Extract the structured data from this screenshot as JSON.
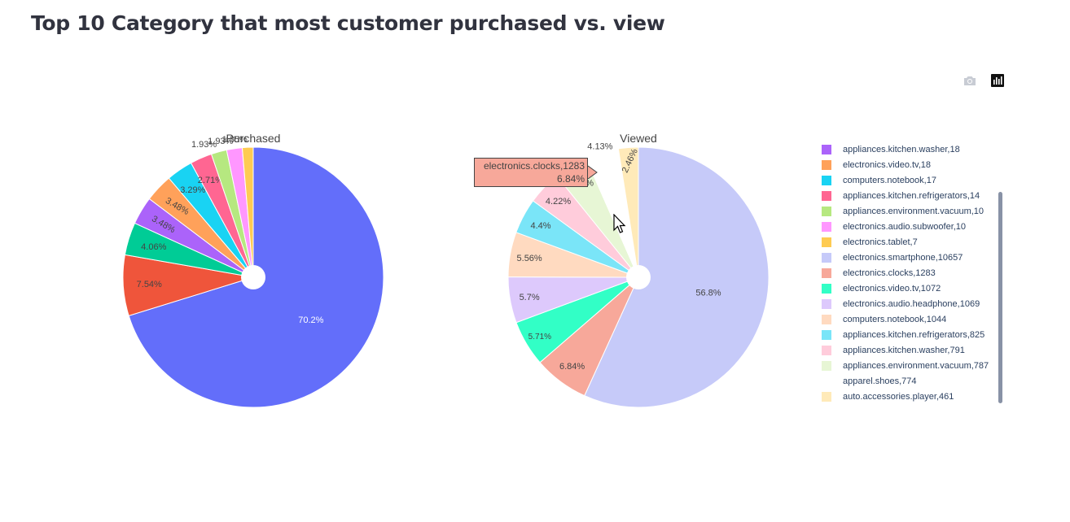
{
  "page": {
    "title": "Top 10 Category that most customer purchased vs. view"
  },
  "modebar": {
    "camera_icon": "camera-icon",
    "snapshot_icon": "bar-chart-icon"
  },
  "chart_data": [
    {
      "type": "pie",
      "title": "Purchased",
      "hole": true,
      "slices": [
        {
          "label": "electronics.smartphone",
          "value": 70.2,
          "text": "70.2%",
          "color": "#636efa"
        },
        {
          "label": "electronics.clocks",
          "value": 7.54,
          "text": "7.54%",
          "color": "#ef553b"
        },
        {
          "label": "electronics.video.tv",
          "value": 4.06,
          "text": "4.06%",
          "color": "#00cc96"
        },
        {
          "label": "appliances.kitchen.washer",
          "value": 3.48,
          "text": "3.48%",
          "color": "#ab63fa"
        },
        {
          "label": "electronics.video.tv",
          "value": 3.48,
          "text": "3.48%",
          "color": "#ffa15a"
        },
        {
          "label": "computers.notebook",
          "value": 3.29,
          "text": "3.29%",
          "color": "#19d3f3"
        },
        {
          "label": "appliances.kitchen.refrigerators",
          "value": 2.71,
          "text": "2.71%",
          "color": "#ff6692"
        },
        {
          "label": "appliances.environment.vacuum",
          "value": 1.93,
          "text": "1.93%",
          "color": "#b6e880"
        },
        {
          "label": "electronics.audio.subwoofer",
          "value": 1.93,
          "text": "1.93%",
          "color": "#ff97ff"
        },
        {
          "label": "electronics.tablet",
          "value": 1.35,
          "text": "1.35%",
          "color": "#fecb52"
        }
      ]
    },
    {
      "type": "pie",
      "title": "Viewed",
      "hole": true,
      "slices": [
        {
          "label": "electronics.smartphone",
          "value": 56.8,
          "text": "56.8%",
          "color": "#c6caf9"
        },
        {
          "label": "electronics.clocks",
          "value": 6.84,
          "text": "6.84%",
          "color": "#f7a89a"
        },
        {
          "label": "electronics.video.tv",
          "value": 5.71,
          "text": "5.71%",
          "color": "#32ffc6"
        },
        {
          "label": "electronics.audio.headphone",
          "value": 5.7,
          "text": "5.7%",
          "color": "#ddc9fc"
        },
        {
          "label": "computers.notebook",
          "value": 5.56,
          "text": "5.56%",
          "color": "#ffdac0"
        },
        {
          "label": "appliances.kitchen.refrigerators",
          "value": 4.4,
          "text": "4.4%",
          "color": "#7ae5f8"
        },
        {
          "label": "appliances.kitchen.washer",
          "value": 4.22,
          "text": "4.22%",
          "color": "#ffccdb"
        },
        {
          "label": "appliances.environment.vacuum",
          "value": 4.19,
          "text": "4.19%",
          "color": "#e7f6d5"
        },
        {
          "label": "apparel.shoes",
          "value": 4.13,
          "text": "4.13%",
          "color": "#ffffff"
        },
        {
          "label": "auto.accessories.player",
          "value": 2.46,
          "text": "2.46%",
          "color": "#ffeab9"
        }
      ]
    }
  ],
  "legend": {
    "position": "right",
    "items": [
      {
        "label": "appliances.kitchen.washer,18",
        "color": "#ab63fa"
      },
      {
        "label": "electronics.video.tv,18",
        "color": "#ffa15a"
      },
      {
        "label": "computers.notebook,17",
        "color": "#19d3f3"
      },
      {
        "label": "appliances.kitchen.refrigerators,14",
        "color": "#ff6692"
      },
      {
        "label": "appliances.environment.vacuum,10",
        "color": "#b6e880"
      },
      {
        "label": "electronics.audio.subwoofer,10",
        "color": "#ff97ff"
      },
      {
        "label": "electronics.tablet,7",
        "color": "#fecb52"
      },
      {
        "label": "electronics.smartphone,10657",
        "color": "#c6caf9"
      },
      {
        "label": "electronics.clocks,1283",
        "color": "#f7a89a"
      },
      {
        "label": "electronics.video.tv,1072",
        "color": "#32ffc6"
      },
      {
        "label": "electronics.audio.headphone,1069",
        "color": "#ddc9fc"
      },
      {
        "label": "computers.notebook,1044",
        "color": "#ffdac0"
      },
      {
        "label": "appliances.kitchen.refrigerators,825",
        "color": "#7ae5f8"
      },
      {
        "label": "appliances.kitchen.washer,791",
        "color": "#ffccdb"
      },
      {
        "label": "appliances.environment.vacuum,787",
        "color": "#e7f6d5"
      },
      {
        "label": "apparel.shoes,774",
        "color": "#ffffff"
      },
      {
        "label": "auto.accessories.player,461",
        "color": "#ffeab9"
      }
    ]
  },
  "tooltip": {
    "line1": "electronics.clocks,1283",
    "line2": "6.84%",
    "color": "#f7a89a"
  }
}
